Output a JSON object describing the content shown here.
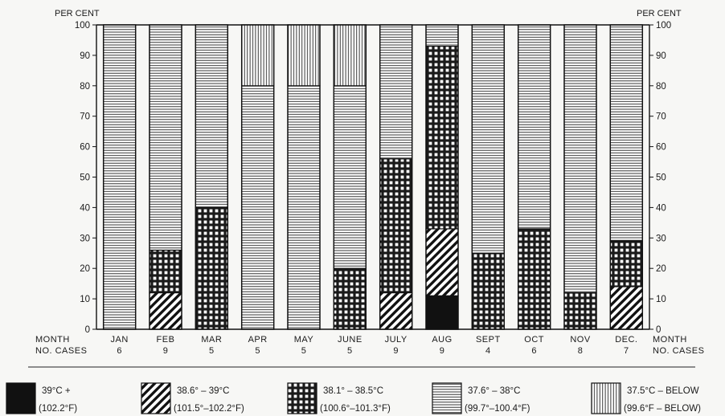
{
  "chart_data": {
    "type": "bar",
    "stacked": true,
    "title": "",
    "ylabel_left": "PER CENT",
    "ylabel_right": "PER CENT",
    "ylim": [
      0,
      100
    ],
    "yticks": [
      0,
      10,
      20,
      30,
      40,
      50,
      60,
      70,
      80,
      90,
      100
    ],
    "row_labels": {
      "month": "MONTH",
      "cases": "NO. CASES"
    },
    "categories": [
      "JAN",
      "FEB",
      "MAR",
      "APR",
      "MAY",
      "JUNE",
      "JULY",
      "AUG",
      "SEPT",
      "OCT",
      "NOV",
      "DEC."
    ],
    "cases": [
      "6",
      "9",
      "5",
      "5",
      "5",
      "5",
      "9",
      "9",
      "4",
      "6",
      "8",
      "7"
    ],
    "series": [
      {
        "name": "39°C +",
        "sub": "(102.2°F)",
        "pattern": "solid",
        "values": [
          0,
          0,
          0,
          0,
          0,
          0,
          0,
          11,
          0,
          0,
          0,
          0
        ]
      },
      {
        "name": "38.6° – 39°C",
        "sub": "(101.5°–102.2°F)",
        "pattern": "diagonal",
        "values": [
          0,
          12,
          0,
          0,
          0,
          0,
          12,
          22,
          0,
          0,
          0,
          14
        ]
      },
      {
        "name": "38.1° – 38.5°C",
        "sub": "(100.6°–101.3°F)",
        "pattern": "grid",
        "values": [
          0,
          14,
          40,
          0,
          0,
          20,
          44,
          60,
          25,
          33,
          12,
          15
        ]
      },
      {
        "name": "37.6° – 38°C",
        "sub": "(99.7°–100.4°F)",
        "pattern": "horizontal",
        "values": [
          100,
          74,
          60,
          80,
          80,
          60,
          44,
          7,
          75,
          67,
          88,
          71
        ]
      },
      {
        "name": "37.5°C – BELOW",
        "sub": "(99.6°F – BELOW)",
        "pattern": "vertical",
        "values": [
          0,
          0,
          0,
          20,
          20,
          20,
          0,
          0,
          0,
          0,
          0,
          0
        ]
      }
    ],
    "grid": false,
    "legend_position": "bottom"
  }
}
